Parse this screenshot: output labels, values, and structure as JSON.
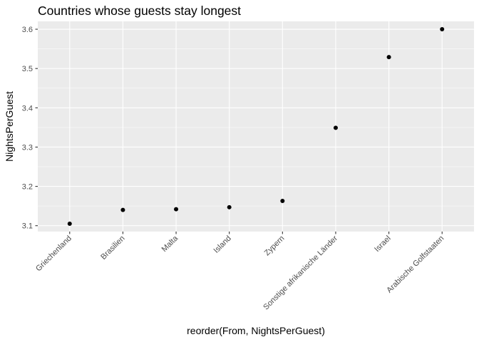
{
  "chart_data": {
    "type": "scatter",
    "title": "Countries whose guests stay longest",
    "xlabel": "reorder(From, NightsPerGuest)",
    "ylabel": "NightsPerGuest",
    "categories": [
      "Griechenland",
      "Brasilien",
      "Malta",
      "Island",
      "Zypern",
      "Sonstige afrikanische Länder",
      "Israel",
      "Arabische Golfstaaten"
    ],
    "values": [
      3.105,
      3.14,
      3.142,
      3.147,
      3.163,
      3.349,
      3.529,
      3.6
    ],
    "ylim": [
      3.085,
      3.62
    ],
    "yticks": [
      3.1,
      3.2,
      3.3,
      3.4,
      3.5,
      3.6
    ],
    "ytick_labels": [
      "3.1",
      "3.2",
      "3.3",
      "3.4",
      "3.5",
      "3.6"
    ],
    "grid": true,
    "legend": "none",
    "colors": {
      "panel": "#EBEBEB",
      "grid_major": "#FFFFFF",
      "point": "#000000",
      "tick_label": "#4D4D4D",
      "text": "#000000"
    }
  }
}
